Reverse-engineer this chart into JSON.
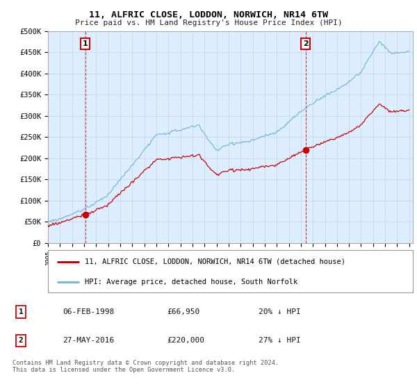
{
  "title": "11, ALFRIC CLOSE, LODDON, NORWICH, NR14 6TW",
  "subtitle": "Price paid vs. HM Land Registry's House Price Index (HPI)",
  "ylabel_ticks": [
    "£0",
    "£50K",
    "£100K",
    "£150K",
    "£200K",
    "£250K",
    "£300K",
    "£350K",
    "£400K",
    "£450K",
    "£500K"
  ],
  "ylim": [
    0,
    500000
  ],
  "xlim_start": 1995.0,
  "xlim_end": 2025.3,
  "sale1_x": 1998.09,
  "sale1_y": 66950,
  "sale1_label": "1",
  "sale2_x": 2016.4,
  "sale2_y": 220000,
  "sale2_label": "2",
  "hpi_color": "#7ab8d9",
  "sale_color": "#cc0000",
  "grid_color": "#c8d8e8",
  "bg_color": "#ffffff",
  "plot_bg_color": "#ddeeff",
  "legend_line1": "11, ALFRIC CLOSE, LODDON, NORWICH, NR14 6TW (detached house)",
  "legend_line2": "HPI: Average price, detached house, South Norfolk",
  "table_row1": [
    "1",
    "06-FEB-1998",
    "£66,950",
    "20% ↓ HPI"
  ],
  "table_row2": [
    "2",
    "27-MAY-2016",
    "£220,000",
    "27% ↓ HPI"
  ],
  "footnote": "Contains HM Land Registry data © Crown copyright and database right 2024.\nThis data is licensed under the Open Government Licence v3.0."
}
